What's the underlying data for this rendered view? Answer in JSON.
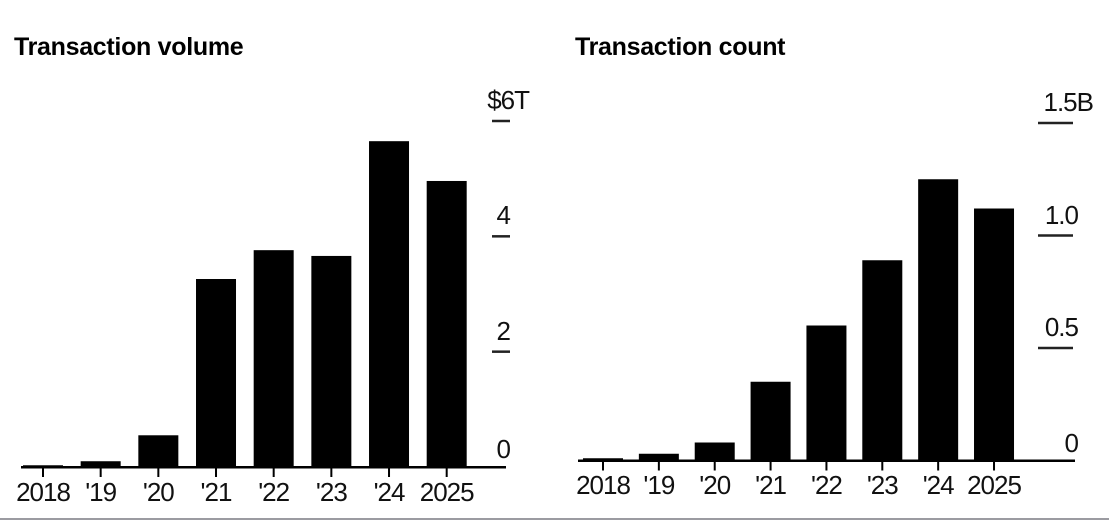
{
  "chart_data": [
    {
      "type": "bar",
      "title": "Transaction volume",
      "unit": "trillions of US dollars",
      "categories": [
        "2018",
        "'19",
        "'20",
        "'21",
        "'22",
        "'23",
        "'24",
        "2025"
      ],
      "values": [
        0.03,
        0.1,
        0.55,
        3.26,
        3.76,
        3.66,
        5.65,
        4.96
      ],
      "ylim": [
        0,
        6
      ],
      "y_ticks": [
        {
          "value": 6,
          "label": "$6T"
        },
        {
          "value": 4,
          "label": "4"
        },
        {
          "value": 2,
          "label": "2"
        },
        {
          "value": 0,
          "label": "0"
        }
      ],
      "grid": false,
      "legend": false,
      "axis_side": "right"
    },
    {
      "type": "bar",
      "title": "Transaction count",
      "unit": "billions",
      "categories": [
        "2018",
        "'19",
        "'20",
        "'21",
        "'22",
        "'23",
        "'24",
        "2025"
      ],
      "values": [
        0.01,
        0.03,
        0.08,
        0.35,
        0.6,
        0.89,
        1.25,
        1.12
      ],
      "ylim": [
        0,
        1.5
      ],
      "y_ticks": [
        {
          "value": 1.5,
          "label": "1.5B"
        },
        {
          "value": 1.0,
          "label": "1.0"
        },
        {
          "value": 0.5,
          "label": "0.5"
        },
        {
          "value": 0,
          "label": "0"
        }
      ],
      "grid": false,
      "legend": false,
      "axis_side": "right"
    }
  ],
  "styles": {
    "background": "#ffffff",
    "bar_color": "#000000",
    "axis_color": "#000000",
    "tick_dash_color": "#222222",
    "label_color": "#111111",
    "title_color": "#000000",
    "divider_color": "#9b9ba1"
  }
}
